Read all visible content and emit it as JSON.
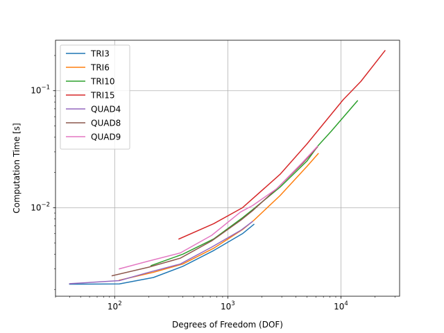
{
  "chart_data": {
    "type": "line",
    "title": "",
    "xlabel": "Degrees of Freedom (DOF)",
    "ylabel": "Computation Time [s]",
    "xscale": "log",
    "yscale": "log",
    "xlim": [
      30,
      33000
    ],
    "ylim": [
      0.00175,
      0.27
    ],
    "grid": true,
    "legend_position": "upper-left",
    "x_major_ticks": [
      {
        "value": 100,
        "label_base": "10",
        "label_exp": "2"
      },
      {
        "value": 1000,
        "label_base": "10",
        "label_exp": "3"
      },
      {
        "value": 10000,
        "label_base": "10",
        "label_exp": "4"
      }
    ],
    "y_major_ticks": [
      {
        "value": 0.01,
        "label_base": "10",
        "label_exp": "−2"
      },
      {
        "value": 0.1,
        "label_base": "10",
        "label_exp": "−1"
      }
    ],
    "series": [
      {
        "name": "TRI3",
        "color": "#1f77b4",
        "x": [
          40,
          110,
          220,
          400,
          750,
          1350,
          1700
        ],
        "y": [
          0.00222,
          0.00223,
          0.00253,
          0.00315,
          0.0043,
          0.006,
          0.0072
        ]
      },
      {
        "name": "TRI6",
        "color": "#ff7f0e",
        "x": [
          110,
          220,
          400,
          750,
          1350,
          1700,
          2900,
          5000,
          6300
        ],
        "y": [
          0.0024,
          0.0028,
          0.0033,
          0.0045,
          0.0065,
          0.0078,
          0.0127,
          0.0225,
          0.029
        ]
      },
      {
        "name": "TRI10",
        "color": "#2ca02c",
        "x": [
          210,
          400,
          750,
          1350,
          1700,
          2900,
          5000,
          6300,
          8200,
          14000
        ],
        "y": [
          0.0032,
          0.004,
          0.0054,
          0.0082,
          0.0098,
          0.015,
          0.025,
          0.034,
          0.045,
          0.082
        ]
      },
      {
        "name": "TRI15",
        "color": "#d62728",
        "x": [
          370,
          750,
          1350,
          2900,
          5000,
          10500,
          15000,
          24500
        ],
        "y": [
          0.0054,
          0.0073,
          0.01,
          0.0193,
          0.035,
          0.084,
          0.12,
          0.22
        ]
      },
      {
        "name": "QUAD4",
        "color": "#9467bd",
        "x": [
          40,
          110,
          200,
          380,
          720,
          1300,
          1650
        ],
        "y": [
          0.00224,
          0.00238,
          0.0028,
          0.0033,
          0.0046,
          0.0064,
          0.0076
        ]
      },
      {
        "name": "QUAD8",
        "color": "#8c564b",
        "x": [
          95,
          200,
          380,
          720,
          1300,
          1650,
          2700,
          4600,
          6200
        ],
        "y": [
          0.00262,
          0.0031,
          0.0037,
          0.0052,
          0.0078,
          0.0094,
          0.0145,
          0.024,
          0.033
        ]
      },
      {
        "name": "QUAD9",
        "color": "#e377c2",
        "x": [
          110,
          200,
          380,
          720,
          1300,
          1650,
          2700,
          4600,
          6200
        ],
        "y": [
          0.003,
          0.0035,
          0.0041,
          0.0058,
          0.0092,
          0.0104,
          0.0145,
          0.0245,
          0.0335
        ]
      }
    ]
  }
}
